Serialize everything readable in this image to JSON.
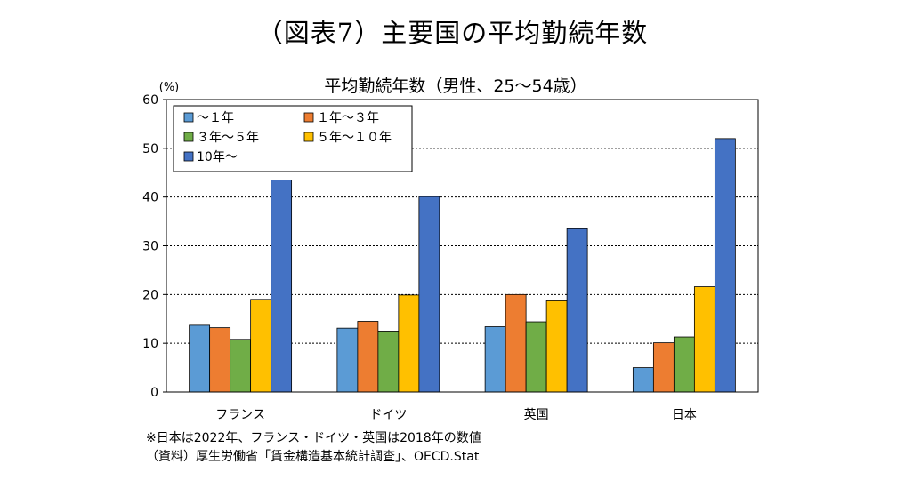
{
  "figure_title": "（図表7）主要国の平均勤続年数",
  "note": "※日本は2022年、フランス・ドイツ・英国は2018年の数値",
  "source": "（資料）厚生労働省「賃金構造基本統計調査」、OECD.Stat",
  "chart_data": {
    "type": "bar",
    "title": "平均勤続年数（男性、25～54歳）",
    "ylabel": "(%)",
    "xlabel": "",
    "ylim": [
      0,
      60
    ],
    "yticks": [
      0,
      10,
      20,
      30,
      40,
      50,
      60
    ],
    "grid": true,
    "legend_position": "top-left",
    "categories": [
      "フランス",
      "ドイツ",
      "英国",
      "日本"
    ],
    "series": [
      {
        "name": "～１年",
        "color": "#5b9bd5",
        "values": [
          13.7,
          13.1,
          13.4,
          5.0
        ]
      },
      {
        "name": "１年～３年",
        "color": "#ed7d31",
        "values": [
          13.2,
          14.5,
          20.0,
          10.1
        ]
      },
      {
        "name": "３年～５年",
        "color": "#70ad47",
        "values": [
          10.8,
          12.5,
          14.4,
          11.3
        ]
      },
      {
        "name": "５年～１０年",
        "color": "#ffc000",
        "values": [
          19.0,
          19.9,
          18.7,
          21.6
        ]
      },
      {
        "name": "10年～",
        "color": "#4472c4",
        "values": [
          43.5,
          40.1,
          33.5,
          52.0
        ]
      }
    ]
  }
}
